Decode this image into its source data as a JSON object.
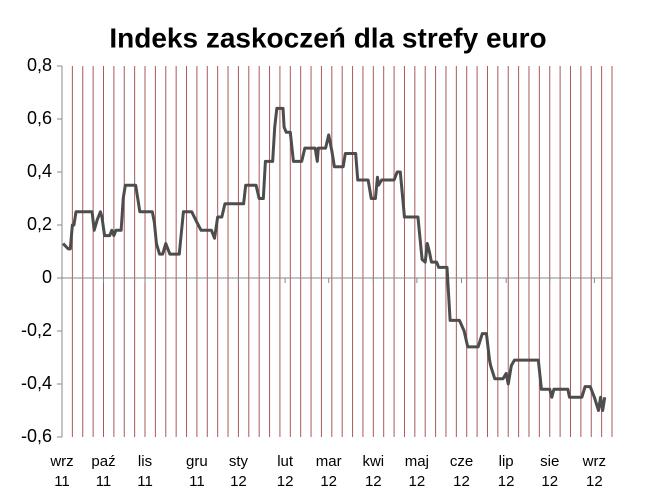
{
  "chart_data": {
    "type": "line",
    "title": "Indeks zaskoczeń dla strefy euro",
    "x": [
      0.1,
      0.6,
      0.8,
      1.0,
      1.15,
      1.35,
      2.9,
      3.1,
      3.4,
      3.7,
      3.85,
      4.1,
      4.6,
      4.8,
      5.0,
      5.2,
      5.7,
      5.9,
      6.1,
      7.1,
      7.5,
      8.7,
      8.9,
      9.1,
      9.4,
      9.7,
      10.0,
      10.4,
      11.3,
      11.7,
      12.5,
      13.0,
      13.4,
      14.4,
      14.7,
      15.0,
      15.4,
      15.7,
      17.5,
      17.7,
      18.7,
      19.0,
      19.4,
      19.6,
      20.3,
      20.5,
      20.7,
      21.3,
      21.4,
      21.6,
      22.0,
      22.3,
      23.1,
      23.4,
      24.4,
      24.6,
      24.7,
      25.4,
      25.7,
      26.0,
      26.25,
      27.1,
      27.3,
      28.3,
      28.5,
      29.5,
      29.8,
      30.2,
      30.4,
      30.5,
      30.8,
      32.0,
      32.3,
      32.6,
      33.0,
      34.3,
      34.5,
      34.7,
      35.0,
      35.2,
      35.4,
      35.6,
      36.1,
      36.3,
      37.1,
      37.4,
      38.3,
      38.75,
      39.1,
      40.1,
      40.5,
      40.9,
      41.2,
      41.3,
      41.7,
      42.5,
      42.8,
      43.0,
      43.3,
      43.6,
      45.9,
      46.2,
      47.0,
      47.2,
      47.4,
      48.75,
      48.9,
      50.1,
      50.4,
      50.9,
      51.3,
      51.7,
      51.9,
      52.1,
      52.3
    ],
    "series": [
      {
        "color": "#4d4d4d",
        "values": [
          0.13,
          0.11,
          0.11,
          0.2,
          0.2,
          0.25,
          0.25,
          0.18,
          0.22,
          0.25,
          0.23,
          0.16,
          0.16,
          0.18,
          0.16,
          0.18,
          0.18,
          0.3,
          0.35,
          0.35,
          0.25,
          0.25,
          0.21,
          0.13,
          0.09,
          0.09,
          0.13,
          0.09,
          0.09,
          0.25,
          0.25,
          0.21,
          0.18,
          0.18,
          0.15,
          0.23,
          0.23,
          0.28,
          0.28,
          0.35,
          0.35,
          0.3,
          0.3,
          0.44,
          0.44,
          0.57,
          0.64,
          0.64,
          0.57,
          0.55,
          0.55,
          0.44,
          0.44,
          0.49,
          0.49,
          0.44,
          0.49,
          0.49,
          0.54,
          0.48,
          0.42,
          0.42,
          0.47,
          0.47,
          0.37,
          0.37,
          0.3,
          0.3,
          0.38,
          0.35,
          0.37,
          0.37,
          0.4,
          0.4,
          0.23,
          0.23,
          0.15,
          0.07,
          0.06,
          0.13,
          0.1,
          0.06,
          0.06,
          0.04,
          0.04,
          -0.16,
          -0.16,
          -0.2,
          -0.26,
          -0.26,
          -0.21,
          -0.21,
          -0.31,
          -0.33,
          -0.38,
          -0.38,
          -0.36,
          -0.4,
          -0.33,
          -0.31,
          -0.31,
          -0.42,
          -0.42,
          -0.45,
          -0.42,
          -0.42,
          -0.45,
          -0.45,
          -0.41,
          -0.41,
          -0.45,
          -0.5,
          -0.45,
          -0.5,
          -0.45
        ]
      }
    ],
    "xlim": [
      0,
      53
    ],
    "xticks": [
      {
        "value": 0,
        "label": "wrz 11"
      },
      {
        "value": 4,
        "label": "paź 11"
      },
      {
        "value": 8,
        "label": "lis 11"
      },
      {
        "value": 13,
        "label": "gru 11"
      },
      {
        "value": 17,
        "label": "sty 12"
      },
      {
        "value": 21.5,
        "label": "lut 12"
      },
      {
        "value": 25.7,
        "label": "mar 12"
      },
      {
        "value": 30,
        "label": "kwi 12"
      },
      {
        "value": 34.2,
        "label": "maj 12"
      },
      {
        "value": 38.5,
        "label": "cze 12"
      },
      {
        "value": 42.8,
        "label": "lip 12"
      },
      {
        "value": 47,
        "label": "sie 12"
      },
      {
        "value": 51.3,
        "label": "wrz 12"
      }
    ],
    "xminorticks": [
      1,
      2,
      3,
      4,
      5,
      6,
      7,
      8,
      9,
      10,
      11,
      12,
      13,
      14,
      15,
      16,
      17,
      18,
      19,
      20,
      21,
      22,
      23,
      24,
      25,
      26,
      27,
      28,
      29,
      30,
      31,
      32,
      33,
      34,
      35,
      36,
      37,
      38,
      39,
      40,
      41,
      42,
      43,
      44,
      45,
      46,
      47,
      48,
      49,
      50,
      51,
      52,
      53
    ],
    "ylim": [
      -0.6,
      0.8
    ],
    "yticks": [
      {
        "value": 0.8,
        "label": "0,8"
      },
      {
        "value": 0.6,
        "label": "0,6"
      },
      {
        "value": 0.4,
        "label": "0,4"
      },
      {
        "value": 0.2,
        "label": "0,2"
      },
      0,
      {
        "value": -0.2,
        "label": "-0,2"
      },
      {
        "value": -0.4,
        "label": "-0,4"
      },
      {
        "value": -0.6,
        "label": "-0,6"
      }
    ],
    "grid_color": "#a85a5a"
  }
}
